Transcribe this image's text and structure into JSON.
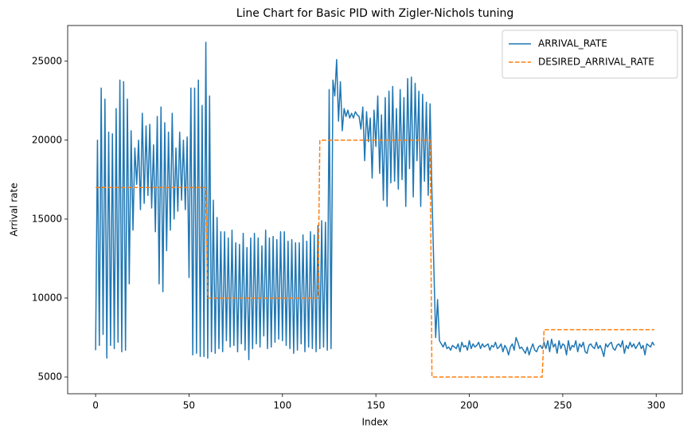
{
  "chart_data": {
    "type": "line",
    "title": "Line Chart for Basic PID with Zigler-Nichols tuning",
    "xlabel": "Index",
    "ylabel": "Arrival rate",
    "x": [
      0,
      1,
      2,
      3,
      4,
      5,
      6,
      7,
      8,
      9,
      10,
      11,
      12,
      13,
      14,
      15,
      16,
      17,
      18,
      19,
      20,
      21,
      22,
      23,
      24,
      25,
      26,
      27,
      28,
      29,
      30,
      31,
      32,
      33,
      34,
      35,
      36,
      37,
      38,
      39,
      40,
      41,
      42,
      43,
      44,
      45,
      46,
      47,
      48,
      49,
      50,
      51,
      52,
      53,
      54,
      55,
      56,
      57,
      58,
      59,
      60,
      61,
      62,
      63,
      64,
      65,
      66,
      67,
      68,
      69,
      70,
      71,
      72,
      73,
      74,
      75,
      76,
      77,
      78,
      79,
      80,
      81,
      82,
      83,
      84,
      85,
      86,
      87,
      88,
      89,
      90,
      91,
      92,
      93,
      94,
      95,
      96,
      97,
      98,
      99,
      100,
      101,
      102,
      103,
      104,
      105,
      106,
      107,
      108,
      109,
      110,
      111,
      112,
      113,
      114,
      115,
      116,
      117,
      118,
      119,
      120,
      121,
      122,
      123,
      124,
      125,
      126,
      127,
      128,
      129,
      130,
      131,
      132,
      133,
      134,
      135,
      136,
      137,
      138,
      139,
      140,
      141,
      142,
      143,
      144,
      145,
      146,
      147,
      148,
      149,
      150,
      151,
      152,
      153,
      154,
      155,
      156,
      157,
      158,
      159,
      160,
      161,
      162,
      163,
      164,
      165,
      166,
      167,
      168,
      169,
      170,
      171,
      172,
      173,
      174,
      175,
      176,
      177,
      178,
      179,
      180,
      181,
      182,
      183,
      184,
      185,
      186,
      187,
      188,
      189,
      190,
      191,
      192,
      193,
      194,
      195,
      196,
      197,
      198,
      199,
      200,
      201,
      202,
      203,
      204,
      205,
      206,
      207,
      208,
      209,
      210,
      211,
      212,
      213,
      214,
      215,
      216,
      217,
      218,
      219,
      220,
      221,
      222,
      223,
      224,
      225,
      226,
      227,
      228,
      229,
      230,
      231,
      232,
      233,
      234,
      235,
      236,
      237,
      238,
      239,
      240,
      241,
      242,
      243,
      244,
      245,
      246,
      247,
      248,
      249,
      250,
      251,
      252,
      253,
      254,
      255,
      256,
      257,
      258,
      259,
      260,
      261,
      262,
      263,
      264,
      265,
      266,
      267,
      268,
      269,
      270,
      271,
      272,
      273,
      274,
      275,
      276,
      277,
      278,
      279,
      280,
      281,
      282,
      283,
      284,
      285,
      286,
      287,
      288,
      289,
      290,
      291,
      292,
      293,
      294,
      295,
      296,
      297,
      298,
      299
    ],
    "series": [
      {
        "name": "ARRIVAL_RATE",
        "color": "#1f77b4",
        "linestyle": "solid",
        "values": [
          6700,
          20000,
          7000,
          23300,
          7700,
          22600,
          6200,
          20500,
          7000,
          20400,
          6800,
          22000,
          7200,
          23800,
          6600,
          23700,
          6700,
          22600,
          10900,
          20600,
          14300,
          19500,
          17200,
          20000,
          15600,
          21700,
          16000,
          20900,
          16500,
          21000,
          15700,
          19700,
          14200,
          21500,
          10900,
          22100,
          10400,
          21100,
          13000,
          20500,
          14300,
          21700,
          15000,
          19500,
          15500,
          20500,
          16200,
          20000,
          15600,
          20200,
          11300,
          23300,
          6400,
          23300,
          6500,
          23800,
          6300,
          22200,
          6300,
          26200,
          6200,
          22800,
          6600,
          16200,
          6500,
          15100,
          6800,
          14200,
          6600,
          14200,
          7300,
          13800,
          6900,
          14300,
          7000,
          13500,
          6600,
          13400,
          7100,
          14100,
          6700,
          13200,
          6100,
          13800,
          6800,
          14100,
          7100,
          13800,
          6900,
          13300,
          7600,
          14300,
          6800,
          13800,
          6900,
          13900,
          7200,
          13700,
          7400,
          14200,
          7300,
          14200,
          7000,
          13600,
          6800,
          13700,
          6500,
          13500,
          6700,
          13500,
          7100,
          14000,
          6600,
          13600,
          6900,
          14200,
          6800,
          14000,
          6600,
          14600,
          6800,
          14900,
          6900,
          14800,
          6700,
          23200,
          6800,
          23800,
          22800,
          25100,
          21200,
          23700,
          20600,
          22000,
          21500,
          21900,
          21400,
          21700,
          21400,
          21800,
          21600,
          21500,
          20700,
          22100,
          18700,
          21800,
          19900,
          21400,
          17600,
          21900,
          19600,
          22800,
          17900,
          21600,
          16200,
          22700,
          15800,
          23100,
          17300,
          23400,
          17400,
          22000,
          16900,
          23200,
          17500,
          22700,
          15800,
          23900,
          18200,
          24000,
          16400,
          23600,
          18700,
          23100,
          15800,
          22900,
          17400,
          22400,
          16500,
          22300,
          16600,
          12000,
          7500,
          9900,
          7300,
          7100,
          6900,
          7200,
          6800,
          6900,
          6700,
          7000,
          6900,
          6800,
          7100,
          6600,
          7200,
          6900,
          7000,
          6700,
          7300,
          6800,
          7100,
          6900,
          7000,
          7200,
          6800,
          7100,
          6900,
          7000,
          7100,
          6700,
          7000,
          6900,
          7200,
          6800,
          6900,
          7100,
          6600,
          7000,
          6800,
          6400,
          6900,
          7100,
          6700,
          7500,
          7200,
          6800,
          6900,
          6700,
          6500,
          6900,
          6400,
          6800,
          7100,
          6700,
          6600,
          6900,
          7000,
          6800,
          7200,
          6800,
          7300,
          6600,
          7400,
          6900,
          7100,
          6500,
          7300,
          6800,
          7100,
          7000,
          6400,
          7300,
          6700,
          7000,
          6900,
          7300,
          6600,
          7100,
          6900,
          7200,
          6600,
          6500,
          7000,
          7100,
          6900,
          6800,
          7200,
          6800,
          7000,
          6700,
          6300,
          7100,
          6900,
          7100,
          7200,
          6800,
          6700,
          7000,
          7100,
          6900,
          7300,
          6500,
          7000,
          6800,
          7200,
          6900,
          7100,
          6800,
          7000,
          7200,
          6800,
          7000,
          6400,
          7100,
          7000,
          6900,
          7200,
          7000
        ]
      },
      {
        "name": "DESIRED_ARRIVAL_RATE",
        "color": "#ff7f0e",
        "linestyle": "dashed",
        "values": [
          17000,
          17000,
          17000,
          17000,
          17000,
          17000,
          17000,
          17000,
          17000,
          17000,
          17000,
          17000,
          17000,
          17000,
          17000,
          17000,
          17000,
          17000,
          17000,
          17000,
          17000,
          17000,
          17000,
          17000,
          17000,
          17000,
          17000,
          17000,
          17000,
          17000,
          17000,
          17000,
          17000,
          17000,
          17000,
          17000,
          17000,
          17000,
          17000,
          17000,
          17000,
          17000,
          17000,
          17000,
          17000,
          17000,
          17000,
          17000,
          17000,
          17000,
          17000,
          17000,
          17000,
          17000,
          17000,
          17000,
          17000,
          17000,
          17000,
          17000,
          10000,
          10000,
          10000,
          10000,
          10000,
          10000,
          10000,
          10000,
          10000,
          10000,
          10000,
          10000,
          10000,
          10000,
          10000,
          10000,
          10000,
          10000,
          10000,
          10000,
          10000,
          10000,
          10000,
          10000,
          10000,
          10000,
          10000,
          10000,
          10000,
          10000,
          10000,
          10000,
          10000,
          10000,
          10000,
          10000,
          10000,
          10000,
          10000,
          10000,
          10000,
          10000,
          10000,
          10000,
          10000,
          10000,
          10000,
          10000,
          10000,
          10000,
          10000,
          10000,
          10000,
          10000,
          10000,
          10000,
          10000,
          10000,
          10000,
          10000,
          20000,
          20000,
          20000,
          20000,
          20000,
          20000,
          20000,
          20000,
          20000,
          20000,
          20000,
          20000,
          20000,
          20000,
          20000,
          20000,
          20000,
          20000,
          20000,
          20000,
          20000,
          20000,
          20000,
          20000,
          20000,
          20000,
          20000,
          20000,
          20000,
          20000,
          20000,
          20000,
          20000,
          20000,
          20000,
          20000,
          20000,
          20000,
          20000,
          20000,
          20000,
          20000,
          20000,
          20000,
          20000,
          20000,
          20000,
          20000,
          20000,
          20000,
          20000,
          20000,
          20000,
          20000,
          20000,
          20000,
          20000,
          20000,
          20000,
          20000,
          5000,
          5000,
          5000,
          5000,
          5000,
          5000,
          5000,
          5000,
          5000,
          5000,
          5000,
          5000,
          5000,
          5000,
          5000,
          5000,
          5000,
          5000,
          5000,
          5000,
          5000,
          5000,
          5000,
          5000,
          5000,
          5000,
          5000,
          5000,
          5000,
          5000,
          5000,
          5000,
          5000,
          5000,
          5000,
          5000,
          5000,
          5000,
          5000,
          5000,
          5000,
          5000,
          5000,
          5000,
          5000,
          5000,
          5000,
          5000,
          5000,
          5000,
          5000,
          5000,
          5000,
          5000,
          5000,
          5000,
          5000,
          5000,
          5000,
          5000,
          8000,
          8000,
          8000,
          8000,
          8000,
          8000,
          8000,
          8000,
          8000,
          8000,
          8000,
          8000,
          8000,
          8000,
          8000,
          8000,
          8000,
          8000,
          8000,
          8000,
          8000,
          8000,
          8000,
          8000,
          8000,
          8000,
          8000,
          8000,
          8000,
          8000,
          8000,
          8000,
          8000,
          8000,
          8000,
          8000,
          8000,
          8000,
          8000,
          8000,
          8000,
          8000,
          8000,
          8000,
          8000,
          8000,
          8000,
          8000,
          8000,
          8000,
          8000,
          8000,
          8000,
          8000,
          8000,
          8000,
          8000,
          8000,
          8000,
          8000
        ]
      }
    ],
    "xlim": [
      -14.95,
      313.95
    ],
    "ylim": [
      3940,
      27260
    ],
    "xticks": [
      0,
      50,
      100,
      150,
      200,
      250,
      300
    ],
    "yticks": [
      5000,
      10000,
      15000,
      20000,
      25000
    ],
    "grid": false,
    "legend": "upper right"
  }
}
